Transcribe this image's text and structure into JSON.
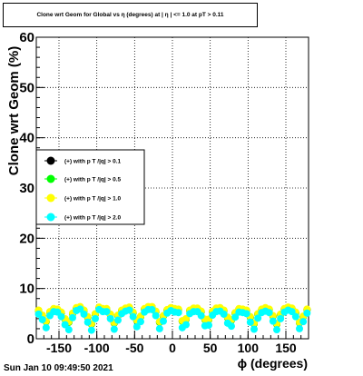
{
  "title": "Clone wrt Geom for Global vs η (degrees) at | η | <= 1.0 at pT > 0.11",
  "footer": "Sun Jan 10 09:49:50 2021",
  "colors": {
    "series_black": "#000000",
    "series_green": "#00ff00",
    "series_yellow": "#ffff00",
    "series_cyan": "#00ffff",
    "grid": "#000000",
    "frame": "#000000"
  },
  "chart_data": {
    "type": "scatter",
    "title": "Clone wrt Geom for Global vs η (degrees) at | η | <= 1.0 at pT > 0.11",
    "xlabel": "ϕ (degrees)",
    "ylabel": "Clone wrt Geom (%)",
    "xlim": [
      -180,
      180
    ],
    "ylim": [
      0,
      60
    ],
    "x_ticks": [
      -150,
      -100,
      -50,
      0,
      50,
      100,
      150
    ],
    "y_ticks": [
      0,
      10,
      20,
      30,
      40,
      50,
      60
    ],
    "grid": true,
    "legend_position": "middle-left",
    "x": [
      -177,
      -172,
      -167,
      -162,
      -157,
      -152,
      -147,
      -142,
      -137,
      -132,
      -127,
      -122,
      -117,
      -112,
      -107,
      -102,
      -97,
      -92,
      -87,
      -82,
      -77,
      -72,
      -67,
      -62,
      -57,
      -52,
      -47,
      -42,
      -37,
      -32,
      -27,
      -22,
      -17,
      -12,
      -7,
      -2,
      3,
      8,
      13,
      18,
      23,
      28,
      33,
      38,
      43,
      48,
      53,
      58,
      63,
      68,
      73,
      78,
      83,
      88,
      93,
      98,
      103,
      108,
      113,
      118,
      123,
      128,
      133,
      138,
      143,
      148,
      153,
      158,
      163,
      168,
      173,
      178
    ],
    "series": [
      {
        "name": "(+) with p T /|q| > 0.1",
        "color": "#000000",
        "values": [
          5.6,
          4.6,
          3.4,
          5.3,
          5.9,
          5.8,
          5.2,
          3.9,
          3.3,
          5.0,
          6.1,
          6.3,
          5.6,
          4.3,
          2.9,
          4.9,
          6.2,
          5.9,
          5.9,
          4.8,
          3.1,
          4.6,
          5.6,
          6.0,
          6.2,
          5.2,
          3.6,
          4.4,
          5.9,
          6.3,
          6.3,
          5.4,
          3.3,
          4.5,
          5.7,
          6.1,
          5.9,
          5.8,
          3.5,
          3.9,
          5.6,
          6.0,
          6.0,
          5.4,
          3.8,
          3.8,
          5.4,
          6.0,
          6.1,
          5.6,
          4.2,
          3.7,
          5.1,
          5.9,
          5.8,
          5.6,
          4.3,
          3.0,
          4.9,
          5.8,
          6.1,
          5.8,
          4.5,
          2.9,
          4.8,
          5.9,
          6.2,
          6.0,
          5.2,
          3.2,
          4.4,
          5.8
        ]
      },
      {
        "name": "(+) with p T /|q| > 0.5",
        "color": "#00ff00",
        "values": [
          5.6,
          4.6,
          3.4,
          5.3,
          5.9,
          5.8,
          5.2,
          3.9,
          3.3,
          5.0,
          6.1,
          6.3,
          5.6,
          4.3,
          2.9,
          4.9,
          6.2,
          5.9,
          5.9,
          4.8,
          3.1,
          4.6,
          5.6,
          6.0,
          6.2,
          5.2,
          3.6,
          4.4,
          5.9,
          6.3,
          6.3,
          5.4,
          3.3,
          4.5,
          5.7,
          6.1,
          5.9,
          5.8,
          3.5,
          3.9,
          5.6,
          6.0,
          6.0,
          5.4,
          3.8,
          3.8,
          5.4,
          6.0,
          6.1,
          5.6,
          4.2,
          3.7,
          5.1,
          5.9,
          5.8,
          5.6,
          4.3,
          3.0,
          4.9,
          5.8,
          6.1,
          5.8,
          4.5,
          2.9,
          4.8,
          5.9,
          6.2,
          6.0,
          5.2,
          3.2,
          4.4,
          5.8
        ]
      },
      {
        "name": "(+) with p T /|q| > 1.0",
        "color": "#ffff00",
        "values": [
          5.7,
          4.7,
          3.5,
          5.4,
          6.0,
          5.9,
          5.3,
          4.0,
          3.4,
          5.1,
          6.2,
          6.4,
          5.7,
          4.4,
          3.0,
          5.0,
          6.3,
          6.0,
          6.0,
          4.9,
          3.2,
          4.7,
          5.7,
          6.1,
          6.3,
          5.3,
          3.7,
          4.5,
          6.0,
          6.4,
          6.4,
          5.5,
          3.4,
          4.6,
          5.8,
          6.2,
          6.0,
          5.9,
          3.6,
          4.0,
          5.7,
          6.1,
          6.1,
          5.5,
          3.9,
          3.9,
          5.5,
          6.1,
          6.2,
          5.7,
          4.3,
          3.8,
          5.2,
          6.0,
          5.9,
          5.7,
          4.4,
          3.1,
          5.0,
          5.9,
          6.2,
          5.9,
          4.6,
          3.0,
          4.9,
          6.0,
          6.3,
          6.1,
          5.3,
          3.3,
          4.5,
          5.9
        ]
      },
      {
        "name": "(+) with p T /|q| > 2.0",
        "color": "#00ffff",
        "values": [
          4.9,
          3.8,
          2.2,
          4.6,
          5.4,
          5.3,
          4.4,
          2.8,
          1.8,
          4.2,
          5.6,
          5.9,
          4.9,
          3.3,
          1.7,
          4.0,
          5.8,
          5.4,
          5.4,
          4.0,
          1.9,
          3.7,
          5.0,
          5.5,
          5.7,
          4.4,
          2.4,
          3.4,
          5.3,
          5.8,
          5.8,
          4.6,
          2.0,
          3.5,
          5.1,
          5.6,
          5.3,
          5.2,
          2.2,
          2.8,
          5.0,
          5.4,
          5.4,
          4.6,
          2.6,
          2.7,
          4.7,
          5.4,
          5.5,
          4.9,
          3.1,
          2.5,
          4.3,
          5.3,
          5.2,
          5.0,
          3.3,
          1.9,
          4.1,
          5.2,
          5.5,
          5.2,
          3.5,
          1.8,
          4.0,
          5.3,
          5.7,
          5.4,
          4.4,
          2.0,
          3.4,
          5.1
        ]
      }
    ]
  }
}
